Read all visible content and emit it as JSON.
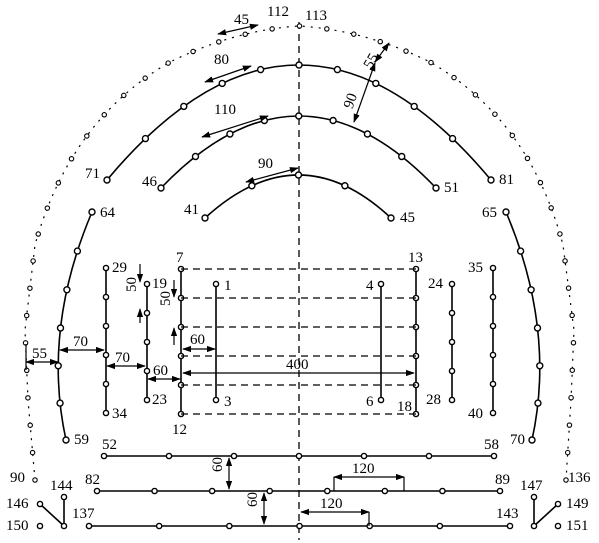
{
  "diagram": {
    "node_labels": {
      "n1": "1",
      "n3": "3",
      "n4": "4",
      "n6": "6",
      "n7": "7",
      "n12": "12",
      "n13": "13",
      "n18": "18",
      "n19": "19",
      "n23": "23",
      "n24": "24",
      "n28": "28",
      "n29": "29",
      "n34": "34",
      "n35": "35",
      "n40": "40",
      "n41": "41",
      "n45": "45",
      "n46": "46",
      "n51": "51",
      "n52": "52",
      "n58": "58",
      "n59": "59",
      "n64": "64",
      "n65": "65",
      "n70": "70",
      "n71": "71",
      "n81": "81",
      "n82": "82",
      "n89": "89",
      "n90": "90",
      "n112": "112",
      "n113": "113",
      "n136": "136",
      "n137": "137",
      "n143": "143",
      "n144": "144",
      "n146": "146",
      "n147": "147",
      "n149": "149",
      "n150": "150",
      "n151": "151"
    },
    "dimensions": {
      "d45": "45",
      "d80": "80",
      "d55_top": "55",
      "d90_right": "90",
      "d110": "110",
      "d90_inner": "90",
      "d50_left": "50",
      "d50_mid": "50",
      "d60_small": "60",
      "d400": "400",
      "d60_h": "60",
      "d55_left": "55",
      "d70_a": "70",
      "d70_b": "70",
      "d120_a": "120",
      "d120_b": "120",
      "d60_v1": "60",
      "d60_v2": "60"
    }
  }
}
